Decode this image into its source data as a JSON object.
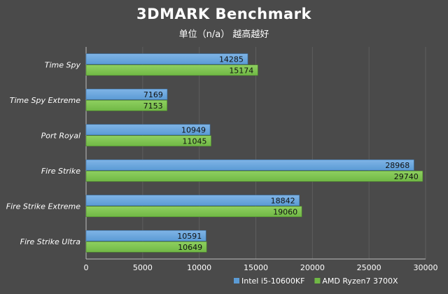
{
  "chart_data": {
    "type": "bar",
    "orientation": "horizontal",
    "title": "3DMARK Benchmark",
    "subtitle": "单位（n/a） 越高越好",
    "categories": [
      "Time Spy",
      "Time Spy Extreme",
      "Port Royal",
      "Fire Strike",
      "Fire Strike Extreme",
      "Fire Strike Ultra"
    ],
    "series": [
      {
        "name": "Intel i5-10600KF",
        "color": "#5b9bd5",
        "values": [
          14285,
          7169,
          10949,
          28968,
          18842,
          10591
        ]
      },
      {
        "name": "AMD Ryzen7 3700X",
        "color": "#70b845",
        "values": [
          15174,
          7153,
          11045,
          29740,
          19060,
          10649
        ]
      }
    ],
    "xlim": [
      0,
      30000
    ],
    "xticks": [
      0,
      5000,
      10000,
      15000,
      20000,
      25000,
      30000
    ],
    "grid": true,
    "legend": "bottom-right"
  }
}
